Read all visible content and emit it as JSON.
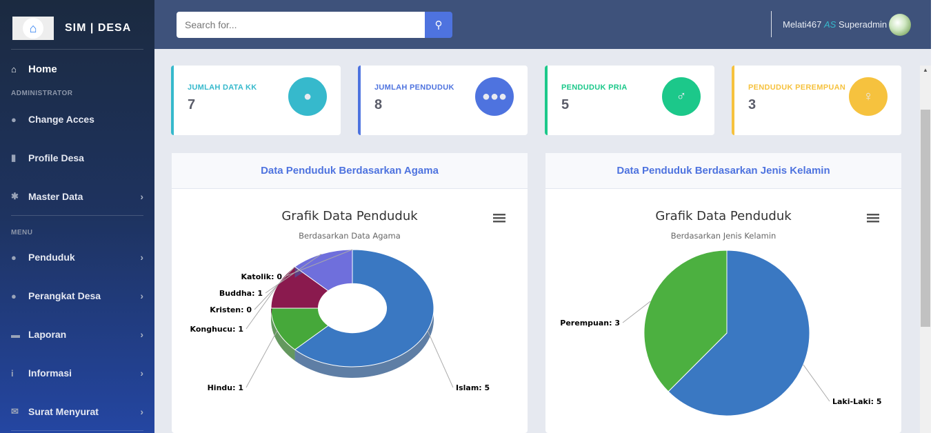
{
  "brand": {
    "name": "SIM | DESA",
    "logo_icon": "house-icon"
  },
  "sidebar": {
    "home": "Home",
    "admin_heading": "ADMINISTRATOR",
    "menu_heading": "MENU",
    "items": [
      {
        "label": "Change Acces",
        "icon": "user-cog-icon"
      },
      {
        "label": "Profile Desa",
        "icon": "building-icon"
      },
      {
        "label": "Master Data",
        "icon": "gear-icon"
      },
      {
        "label": "Penduduk",
        "icon": "pills-icon"
      },
      {
        "label": "Perangkat Desa",
        "icon": "user-icon"
      },
      {
        "label": "Laporan",
        "icon": "book-icon"
      },
      {
        "label": "Informasi",
        "icon": "info-icon"
      },
      {
        "label": "Surat Menyurat",
        "icon": "envelope-icon"
      }
    ]
  },
  "topbar": {
    "search_placeholder": "Search for...",
    "user_name": "Melati467",
    "user_as": "AS",
    "user_role": "Superadmin"
  },
  "cards": [
    {
      "label": "JUMLAH DATA KK",
      "value": "7",
      "color": "#36b9cc",
      "icon": "user-icon"
    },
    {
      "label": "JUMLAH PENDUDUK",
      "value": "8",
      "color": "#4e73df",
      "icon": "users-icon"
    },
    {
      "label": "PENDUDUK PRIA",
      "value": "5",
      "color": "#1cc88a",
      "icon": "male-icon"
    },
    {
      "label": "PENDUDUK PEREMPUAN",
      "value": "3",
      "color": "#f6c23e",
      "icon": "female-icon"
    }
  ],
  "panels": [
    {
      "header": "Data Penduduk Berdasarkan Agama"
    },
    {
      "header": "Data Penduduk Berdasarkan Jenis Kelamin"
    }
  ],
  "chart_data": [
    {
      "type": "pie",
      "variant": "3d-donut",
      "title": "Grafik Data Penduduk",
      "subtitle": "Berdasarkan Data Agama",
      "categories": [
        "Islam",
        "Hindu",
        "Konghucu",
        "Kristen",
        "Buddha",
        "Katolik"
      ],
      "values": [
        5,
        1,
        1,
        0,
        1,
        0
      ],
      "labels": [
        "Islam: 5",
        "Hindu: 1",
        "Konghucu: 1",
        "Kristen: 0",
        "Buddha: 1",
        "Katolik: 0"
      ],
      "colors": [
        "#3a78c2",
        "#46a83a",
        "#8a1a4e",
        "#c0c0c0",
        "#6f6fdc",
        "#e080a0"
      ]
    },
    {
      "type": "pie",
      "title": "Grafik Data Penduduk",
      "subtitle": "Berdasarkan Jenis Kelamin",
      "categories": [
        "Laki-Laki",
        "Perempuan"
      ],
      "values": [
        5,
        3
      ],
      "labels": [
        "Laki-Laki: 5",
        "Perempuan: 3"
      ],
      "colors": [
        "#3a78c2",
        "#4cb040"
      ]
    }
  ]
}
